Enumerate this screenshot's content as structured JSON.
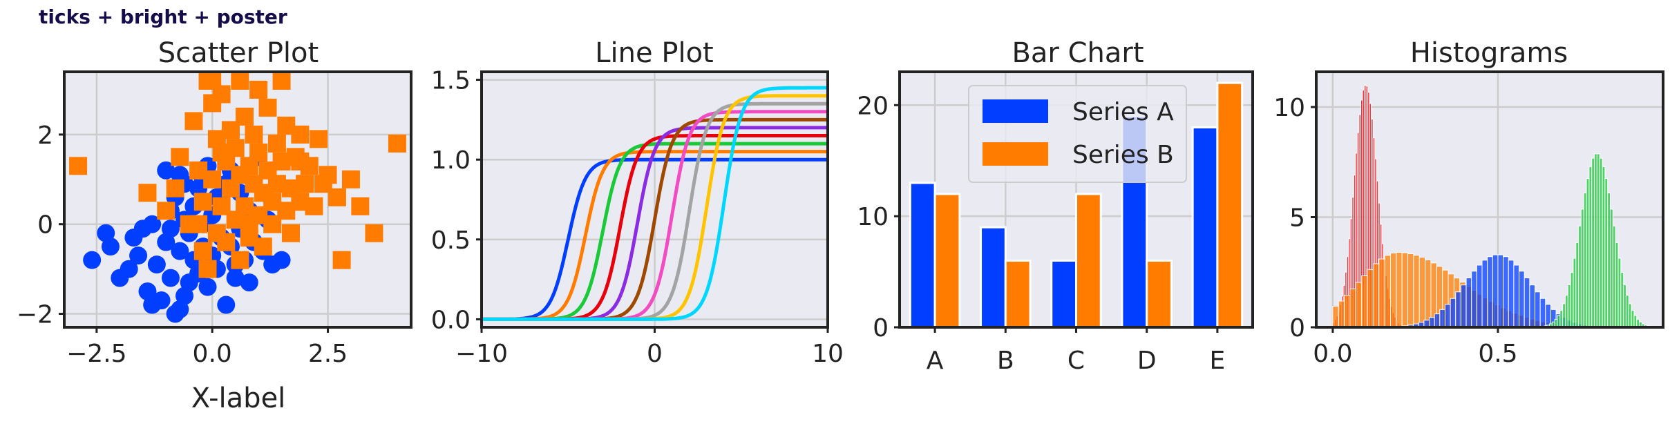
{
  "figure": {
    "suptitle": "ticks + bright + poster",
    "colors": {
      "axes_bg": "#eaeaf2",
      "grid": "#cccccc",
      "spine": "#222222",
      "suptitle": "#150d4a"
    }
  },
  "chart_data": [
    {
      "type": "scatter",
      "title": "Scatter Plot",
      "xlabel": "X-label",
      "ylabel": "",
      "xlim": [
        -3.2,
        4.3
      ],
      "ylim": [
        -2.3,
        3.4
      ],
      "xticks": [
        -2.5,
        0.0,
        2.5
      ],
      "xtick_labels": [
        "−2.5",
        "0.0",
        "2.5"
      ],
      "yticks": [
        -2,
        0,
        2
      ],
      "ytick_labels": [
        "−2",
        "0",
        "2"
      ],
      "grid": true,
      "series": [
        {
          "marker": "circle",
          "color": "#023eff",
          "points": [
            [
              -2.6,
              -0.8
            ],
            [
              -2.2,
              -0.5
            ],
            [
              -2.0,
              -1.2
            ],
            [
              -1.7,
              -0.3
            ],
            [
              -1.6,
              -0.7
            ],
            [
              -1.5,
              -0.1
            ],
            [
              -1.4,
              -1.5
            ],
            [
              -1.3,
              0.0
            ],
            [
              -1.2,
              -0.9
            ],
            [
              -1.1,
              -1.7
            ],
            [
              -1.0,
              -0.4
            ],
            [
              -0.9,
              0.3
            ],
            [
              -0.9,
              -1.2
            ],
            [
              -0.8,
              -2.0
            ],
            [
              -0.8,
              0.6
            ],
            [
              -0.7,
              -0.6
            ],
            [
              -0.7,
              1.1
            ],
            [
              -0.6,
              -1.6
            ],
            [
              -0.6,
              0.9
            ],
            [
              -0.5,
              -0.2
            ],
            [
              -0.5,
              -1.3
            ],
            [
              -0.4,
              0.4
            ],
            [
              -0.4,
              -0.8
            ],
            [
              -0.3,
              0.8
            ],
            [
              -0.3,
              -1.1
            ],
            [
              -0.2,
              0.0
            ],
            [
              -0.2,
              -0.5
            ],
            [
              -0.1,
              1.3
            ],
            [
              -0.1,
              -1.4
            ],
            [
              0.0,
              0.2
            ],
            [
              0.0,
              -0.7
            ],
            [
              0.1,
              -1.0
            ],
            [
              0.1,
              0.6
            ],
            [
              0.2,
              -0.3
            ],
            [
              0.3,
              -1.8
            ],
            [
              0.3,
              0.9
            ],
            [
              0.4,
              -0.5
            ],
            [
              0.5,
              -1.2
            ],
            [
              0.6,
              -0.1
            ],
            [
              0.6,
              0.7
            ],
            [
              0.7,
              -0.8
            ],
            [
              0.8,
              -1.3
            ],
            [
              0.8,
              0.3
            ],
            [
              0.9,
              -0.4
            ],
            [
              1.0,
              1.5
            ],
            [
              1.1,
              -0.6
            ],
            [
              1.2,
              0.1
            ],
            [
              1.3,
              -0.9
            ],
            [
              -1.8,
              -1.0
            ],
            [
              -1.3,
              -1.8
            ],
            [
              -0.9,
              -0.1
            ],
            [
              -0.6,
              0.1
            ],
            [
              -0.2,
              1.0
            ],
            [
              0.2,
              0.5
            ],
            [
              0.5,
              -0.9
            ],
            [
              -1.0,
              1.2
            ],
            [
              -0.7,
              -1.9
            ],
            [
              0.4,
              1.2
            ],
            [
              1.5,
              -0.8
            ],
            [
              -2.3,
              -0.2
            ]
          ]
        },
        {
          "marker": "square",
          "color": "#ff7c00",
          "points": [
            [
              -2.9,
              1.3
            ],
            [
              -1.4,
              0.7
            ],
            [
              -1.0,
              0.3
            ],
            [
              -0.8,
              0.8
            ],
            [
              -0.7,
              1.5
            ],
            [
              -0.5,
              0.0
            ],
            [
              -0.4,
              2.3
            ],
            [
              -0.3,
              1.2
            ],
            [
              -0.2,
              0.5
            ],
            [
              -0.2,
              -0.6
            ],
            [
              -0.1,
              3.2
            ],
            [
              0.0,
              2.7
            ],
            [
              0.0,
              1.0
            ],
            [
              0.1,
              -0.2
            ],
            [
              0.1,
              1.9
            ],
            [
              0.2,
              0.4
            ],
            [
              0.2,
              2.9
            ],
            [
              0.3,
              1.4
            ],
            [
              0.3,
              -0.4
            ],
            [
              0.4,
              0.8
            ],
            [
              0.4,
              2.1
            ],
            [
              0.5,
              0.1
            ],
            [
              0.5,
              1.7
            ],
            [
              0.6,
              1.1
            ],
            [
              0.6,
              -0.8
            ],
            [
              0.7,
              2.4
            ],
            [
              0.7,
              0.4
            ],
            [
              0.8,
              1.3
            ],
            [
              0.8,
              -0.3
            ],
            [
              0.9,
              0.9
            ],
            [
              0.9,
              2.0
            ],
            [
              1.0,
              0.2
            ],
            [
              1.0,
              1.6
            ],
            [
              1.1,
              0.7
            ],
            [
              1.1,
              -0.5
            ],
            [
              1.2,
              1.2
            ],
            [
              1.2,
              2.6
            ],
            [
              1.3,
              0.0
            ],
            [
              1.3,
              0.5
            ],
            [
              1.4,
              1.8
            ],
            [
              1.4,
              0.9
            ],
            [
              1.5,
              3.2
            ],
            [
              1.5,
              1.4
            ],
            [
              1.6,
              0.3
            ],
            [
              1.6,
              2.2
            ],
            [
              1.7,
              0.8
            ],
            [
              1.7,
              -0.2
            ],
            [
              1.8,
              1.5
            ],
            [
              1.9,
              0.5
            ],
            [
              1.9,
              2.0
            ],
            [
              2.0,
              0.9
            ],
            [
              2.1,
              1.3
            ],
            [
              2.2,
              0.4
            ],
            [
              2.3,
              1.9
            ],
            [
              2.4,
              0.9
            ],
            [
              2.5,
              1.1
            ],
            [
              2.7,
              0.6
            ],
            [
              3.0,
              1.0
            ],
            [
              3.2,
              0.4
            ],
            [
              3.5,
              -0.2
            ],
            [
              2.8,
              -0.8
            ],
            [
              4.0,
              1.8
            ],
            [
              0.0,
              3.3
            ],
            [
              0.6,
              3.2
            ],
            [
              1.0,
              3.0
            ],
            [
              -0.1,
              -1.0
            ],
            [
              -0.3,
              0.0
            ],
            [
              0.2,
              1.6
            ],
            [
              0.8,
              0.0
            ],
            [
              1.9,
              1.4
            ]
          ]
        }
      ]
    },
    {
      "type": "line",
      "title": "Line Plot",
      "xlabel": "",
      "ylabel": "",
      "xlim": [
        -10,
        10
      ],
      "ylim": [
        -0.05,
        1.55
      ],
      "xticks": [
        -10,
        0,
        10
      ],
      "xtick_labels": [
        "−10",
        "0",
        "10"
      ],
      "yticks": [
        0.0,
        0.5,
        1.0,
        1.5
      ],
      "ytick_labels": [
        "0.0",
        "0.5",
        "1.0",
        "1.5"
      ],
      "grid": true,
      "x_range": [
        -10,
        10
      ],
      "series": [
        {
          "center": -5.0,
          "amplitude": 1.0,
          "color": "#023eff"
        },
        {
          "center": -4.0,
          "amplitude": 1.05,
          "color": "#ff7c00"
        },
        {
          "center": -3.0,
          "amplitude": 1.1,
          "color": "#1ac938"
        },
        {
          "center": -2.0,
          "amplitude": 1.15,
          "color": "#e8000b"
        },
        {
          "center": -1.0,
          "amplitude": 1.2,
          "color": "#8b2be2"
        },
        {
          "center": 0.0,
          "amplitude": 1.25,
          "color": "#9f4800"
        },
        {
          "center": 1.0,
          "amplitude": 1.3,
          "color": "#f14cc1"
        },
        {
          "center": 2.0,
          "amplitude": 1.35,
          "color": "#a3a3a3"
        },
        {
          "center": 3.0,
          "amplitude": 1.4,
          "color": "#ffc400"
        },
        {
          "center": 4.0,
          "amplitude": 1.45,
          "color": "#00d7ff"
        }
      ]
    },
    {
      "type": "bar",
      "title": "Bar Chart",
      "xlabel": "",
      "ylabel": "",
      "categories": [
        "A",
        "B",
        "C",
        "D",
        "E"
      ],
      "ylim": [
        0,
        23
      ],
      "yticks": [
        0,
        10,
        20
      ],
      "ytick_labels": [
        "0",
        "10",
        "20"
      ],
      "grid": true,
      "legend_position": "top-center",
      "series": [
        {
          "name": "Series A",
          "color": "#023eff",
          "values": [
            13,
            9,
            6,
            19,
            18
          ]
        },
        {
          "name": "Series B",
          "color": "#ff7c00",
          "values": [
            12,
            6,
            12,
            6,
            22
          ]
        }
      ]
    },
    {
      "type": "histogram",
      "title": "Histograms",
      "xlabel": "",
      "ylabel": "",
      "xlim": [
        -0.05,
        1.0
      ],
      "ylim": [
        0,
        11.6
      ],
      "xticks": [
        0.0,
        0.5
      ],
      "xtick_labels": [
        "0.0",
        "0.5"
      ],
      "yticks": [
        0,
        5,
        10
      ],
      "ytick_labels": [
        "0",
        "5",
        "10"
      ],
      "grid": true,
      "series": [
        {
          "color": "#e8000b",
          "mean": 0.1,
          "std": 0.035,
          "peak": 11.0
        },
        {
          "color": "#ff7c00",
          "mean": 0.2,
          "std": 0.12,
          "peak": 3.4,
          "skew": "right"
        },
        {
          "color": "#023eff",
          "mean": 0.5,
          "std": 0.1,
          "peak": 3.3
        },
        {
          "color": "#1ac938",
          "mean": 0.8,
          "std": 0.05,
          "peak": 7.9
        }
      ]
    }
  ]
}
